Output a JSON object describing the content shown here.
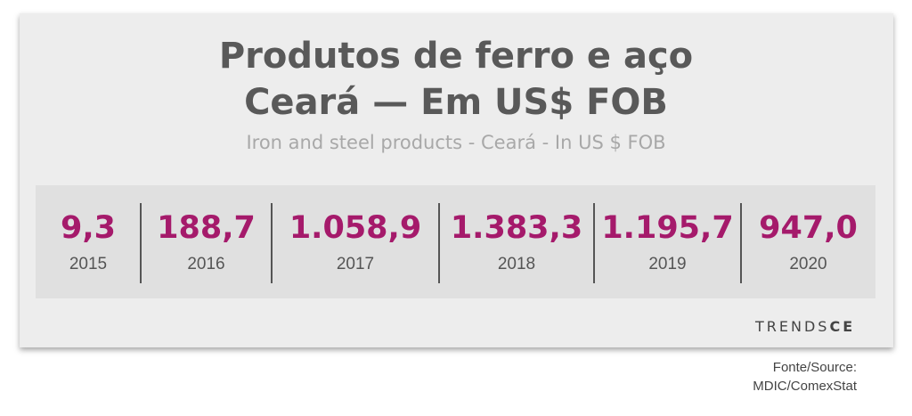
{
  "header": {
    "title": [
      "Produtos de ferro e aço",
      "Ceará — Em US$ FOB"
    ],
    "subtitle": "Iron and steel products - Ceará - In US $ FOB"
  },
  "items": [
    {
      "value": "9,3",
      "year": "2015"
    },
    {
      "value": "188,7",
      "year": "2016"
    },
    {
      "value": "1.058,9",
      "year": "2017"
    },
    {
      "value": "1.383,3",
      "year": "2018"
    },
    {
      "value": "1.195,7",
      "year": "2019"
    },
    {
      "value": "947,0",
      "year": "2020"
    }
  ],
  "brand": [
    "TRENDS",
    "CE"
  ],
  "source": [
    "Fonte/Source:",
    "MDIC/ComexStat"
  ]
}
